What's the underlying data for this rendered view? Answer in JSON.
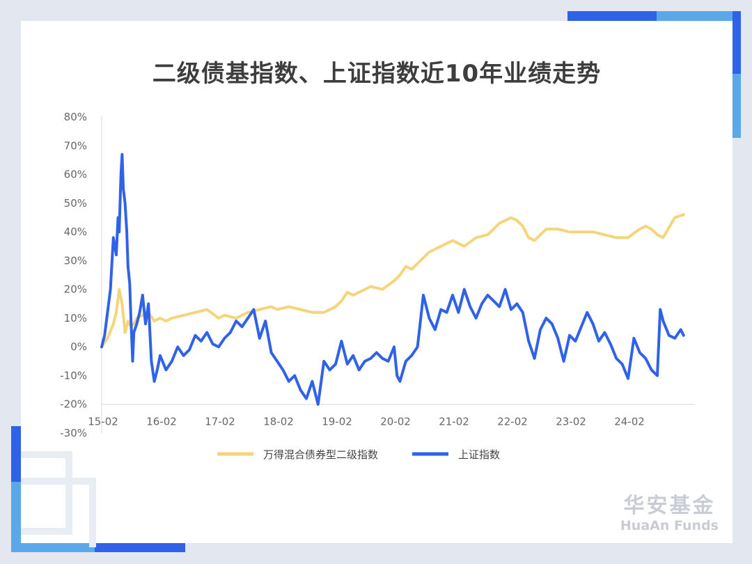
{
  "title": "二级债基指数、上证指数近10年业绩走势",
  "colors": {
    "bond": "#f5d57a",
    "sse": "#2f62e8",
    "accent_light": "#5aa8ea",
    "accent_dark": "#2f62e8"
  },
  "brand": {
    "cn": "华安基金",
    "en": "HuaAn Funds"
  },
  "legend": [
    {
      "label": "万得混合债券型二级指数",
      "color": "#f5d57a"
    },
    {
      "label": "上证指数",
      "color": "#2f62e8"
    }
  ],
  "chart_data": {
    "type": "line",
    "title": "二级债基指数、上证指数近10年业绩走势",
    "xlabel": "",
    "ylabel": "",
    "x_ticks": [
      "15-02",
      "16-02",
      "17-02",
      "18-02",
      "19-02",
      "20-02",
      "21-02",
      "22-02",
      "23-02",
      "24-02"
    ],
    "x_tick_pos": [
      0,
      1,
      2,
      3,
      4,
      5,
      6,
      7,
      8,
      9
    ],
    "xlim": [
      0,
      10.0
    ],
    "y_ticks": [
      "80%",
      "70%",
      "60%",
      "50%",
      "40%",
      "30%",
      "20%",
      "10%",
      "0%",
      "-10%",
      "-20%",
      "-30%"
    ],
    "y_tick_values": [
      80,
      70,
      60,
      50,
      40,
      30,
      20,
      10,
      0,
      -10,
      -20,
      -30
    ],
    "ylim": [
      -30,
      80
    ],
    "grid": false,
    "legend_position": "bottom",
    "series": [
      {
        "name": "万得混合债券型二级指数",
        "x": [
          0,
          0.1,
          0.2,
          0.25,
          0.3,
          0.35,
          0.4,
          0.45,
          0.5,
          0.55,
          0.6,
          0.7,
          0.8,
          0.9,
          1.0,
          1.1,
          1.2,
          1.4,
          1.6,
          1.8,
          2.0,
          2.1,
          2.3,
          2.5,
          2.7,
          2.9,
          3.0,
          3.2,
          3.4,
          3.6,
          3.8,
          4.0,
          4.1,
          4.2,
          4.3,
          4.4,
          4.6,
          4.8,
          5.0,
          5.1,
          5.2,
          5.3,
          5.4,
          5.6,
          5.8,
          6.0,
          6.1,
          6.2,
          6.4,
          6.6,
          6.8,
          6.9,
          7.0,
          7.1,
          7.2,
          7.3,
          7.4,
          7.6,
          7.8,
          8.0,
          8.2,
          8.4,
          8.6,
          8.8,
          9.0,
          9.2,
          9.3,
          9.4,
          9.5,
          9.6,
          9.8,
          9.95
        ],
        "values": [
          0,
          3,
          8,
          12,
          20,
          15,
          5,
          9,
          7,
          8,
          10,
          11,
          12,
          9,
          10,
          9,
          10,
          11,
          12,
          13,
          10,
          11,
          10,
          12,
          13,
          14,
          13,
          14,
          13,
          12,
          12,
          14,
          16,
          19,
          18,
          19,
          21,
          20,
          23,
          25,
          28,
          27,
          29,
          33,
          35,
          37,
          36,
          35,
          38,
          39,
          43,
          44,
          45,
          44,
          42,
          38,
          37,
          41,
          41,
          40,
          40,
          40,
          39,
          38,
          38,
          41,
          42,
          41,
          39,
          38,
          45,
          46
        ]
      },
      {
        "name": "上证指数",
        "x": [
          0,
          0.05,
          0.1,
          0.15,
          0.2,
          0.25,
          0.28,
          0.3,
          0.33,
          0.35,
          0.37,
          0.4,
          0.43,
          0.45,
          0.48,
          0.5,
          0.53,
          0.55,
          0.6,
          0.65,
          0.7,
          0.75,
          0.8,
          0.85,
          0.9,
          0.95,
          1.0,
          1.1,
          1.2,
          1.3,
          1.4,
          1.5,
          1.6,
          1.7,
          1.8,
          1.9,
          2.0,
          2.1,
          2.2,
          2.3,
          2.4,
          2.5,
          2.6,
          2.7,
          2.8,
          2.9,
          3.0,
          3.1,
          3.2,
          3.3,
          3.4,
          3.5,
          3.6,
          3.7,
          3.8,
          3.9,
          4.0,
          4.05,
          4.1,
          4.2,
          4.3,
          4.4,
          4.5,
          4.6,
          4.7,
          4.8,
          4.9,
          5.0,
          5.05,
          5.1,
          5.2,
          5.3,
          5.4,
          5.5,
          5.6,
          5.7,
          5.8,
          5.9,
          6.0,
          6.1,
          6.2,
          6.3,
          6.4,
          6.5,
          6.6,
          6.7,
          6.8,
          6.9,
          7.0,
          7.1,
          7.2,
          7.3,
          7.4,
          7.5,
          7.6,
          7.7,
          7.8,
          7.9,
          8.0,
          8.1,
          8.2,
          8.3,
          8.4,
          8.5,
          8.6,
          8.7,
          8.8,
          8.9,
          9.0,
          9.1,
          9.2,
          9.3,
          9.4,
          9.5,
          9.55,
          9.6,
          9.7,
          9.8,
          9.9,
          9.95
        ],
        "values": [
          0,
          4,
          12,
          20,
          38,
          32,
          45,
          40,
          60,
          67,
          55,
          50,
          40,
          28,
          22,
          10,
          -5,
          5,
          8,
          12,
          18,
          8,
          15,
          -5,
          -12,
          -8,
          -3,
          -8,
          -5,
          0,
          -3,
          -1,
          4,
          2,
          5,
          1,
          0,
          3,
          5,
          9,
          7,
          10,
          13,
          3,
          9,
          -2,
          -5,
          -8,
          -12,
          -10,
          -15,
          -18,
          -12,
          -20,
          -5,
          -8,
          -6,
          -2,
          2,
          -6,
          -3,
          -8,
          -5,
          -4,
          -2,
          -4,
          -5,
          0,
          -10,
          -12,
          -5,
          -3,
          0,
          18,
          10,
          6,
          13,
          12,
          18,
          12,
          20,
          14,
          10,
          15,
          18,
          16,
          14,
          20,
          13,
          15,
          12,
          2,
          -4,
          6,
          10,
          8,
          3,
          -5,
          4,
          2,
          7,
          12,
          8,
          2,
          5,
          1,
          -4,
          -6,
          -11,
          3,
          -2,
          -4,
          -8,
          -10,
          13,
          9,
          4,
          3,
          6,
          4
        ]
      }
    ]
  }
}
